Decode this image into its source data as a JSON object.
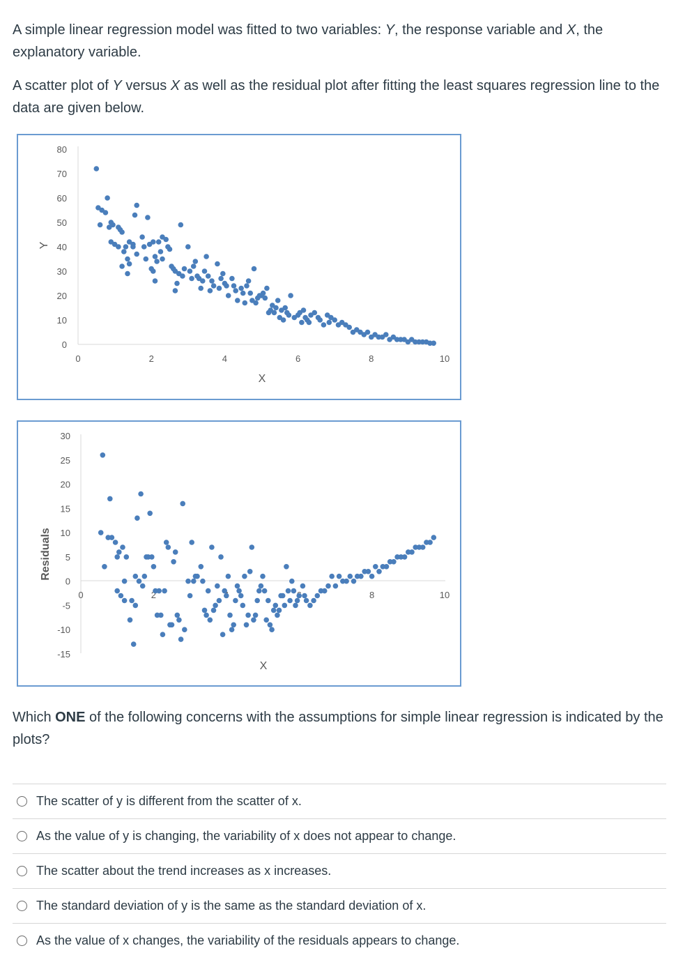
{
  "intro": {
    "p1": [
      "A simple linear regression model was fitted to two variables: ",
      "Y",
      ", the response variable and ",
      "X",
      ", the explanatory variable."
    ],
    "p2": [
      "A scatter plot of ",
      "Y",
      " versus ",
      "X",
      " as well as the residual plot after fitting the least squares regression line to the data are given below."
    ]
  },
  "chart_data": [
    {
      "type": "scatter",
      "xlabel": "X",
      "ylabel": "Y",
      "xlim": [
        0,
        10
      ],
      "ylim": [
        0,
        80
      ],
      "xticks": [
        "0",
        "2",
        "4",
        "6",
        "8",
        "10"
      ],
      "yticks": [
        "0",
        "10",
        "20",
        "30",
        "40",
        "50",
        "60",
        "70",
        "80"
      ],
      "color": "#4a7ebb",
      "points": [
        [
          0.5,
          72
        ],
        [
          0.55,
          56
        ],
        [
          0.6,
          49
        ],
        [
          0.65,
          55
        ],
        [
          0.75,
          54
        ],
        [
          0.8,
          60
        ],
        [
          0.85,
          48
        ],
        [
          0.9,
          50
        ],
        [
          0.95,
          49
        ],
        [
          1.1,
          48
        ],
        [
          1.15,
          47
        ],
        [
          1.2,
          46
        ],
        [
          0.9,
          42
        ],
        [
          1.0,
          41
        ],
        [
          1.1,
          40
        ],
        [
          1.25,
          38
        ],
        [
          1.3,
          40
        ],
        [
          1.4,
          42
        ],
        [
          1.5,
          40
        ],
        [
          1.6,
          37
        ],
        [
          1.35,
          35
        ],
        [
          1.4,
          33
        ],
        [
          1.2,
          32
        ],
        [
          1.35,
          29
        ],
        [
          1.5,
          41
        ],
        [
          1.55,
          53
        ],
        [
          1.6,
          57
        ],
        [
          1.75,
          44
        ],
        [
          1.8,
          40
        ],
        [
          1.85,
          35
        ],
        [
          1.95,
          41
        ],
        [
          1.9,
          52
        ],
        [
          2.05,
          42
        ],
        [
          2.1,
          36
        ],
        [
          2.15,
          34
        ],
        [
          2.0,
          31
        ],
        [
          2.05,
          30
        ],
        [
          2.1,
          26
        ],
        [
          2.2,
          42
        ],
        [
          2.25,
          38
        ],
        [
          2.3,
          35
        ],
        [
          2.3,
          44
        ],
        [
          2.4,
          43
        ],
        [
          2.45,
          40
        ],
        [
          2.5,
          39
        ],
        [
          2.55,
          32
        ],
        [
          2.6,
          31
        ],
        [
          2.65,
          30
        ],
        [
          2.7,
          25
        ],
        [
          2.65,
          22
        ],
        [
          2.75,
          29
        ],
        [
          2.8,
          49
        ],
        [
          2.85,
          28
        ],
        [
          2.9,
          31
        ],
        [
          3.0,
          40
        ],
        [
          3.05,
          30
        ],
        [
          3.1,
          27
        ],
        [
          3.15,
          32
        ],
        [
          3.2,
          34
        ],
        [
          3.25,
          28
        ],
        [
          3.3,
          27
        ],
        [
          3.35,
          23
        ],
        [
          3.4,
          26
        ],
        [
          3.45,
          30
        ],
        [
          3.5,
          36
        ],
        [
          3.55,
          28
        ],
        [
          3.6,
          22
        ],
        [
          3.65,
          26
        ],
        [
          3.7,
          24
        ],
        [
          3.8,
          33
        ],
        [
          3.85,
          23
        ],
        [
          3.9,
          27
        ],
        [
          3.95,
          29
        ],
        [
          4.0,
          25
        ],
        [
          4.05,
          24
        ],
        [
          4.1,
          20
        ],
        [
          4.2,
          27
        ],
        [
          4.25,
          24
        ],
        [
          4.3,
          22
        ],
        [
          4.35,
          18
        ],
        [
          4.45,
          23
        ],
        [
          4.5,
          21
        ],
        [
          4.55,
          17
        ],
        [
          4.6,
          24
        ],
        [
          4.65,
          26
        ],
        [
          4.7,
          21
        ],
        [
          4.75,
          18
        ],
        [
          4.8,
          31
        ],
        [
          4.85,
          17
        ],
        [
          4.9,
          19
        ],
        [
          4.95,
          20
        ],
        [
          5.0,
          20
        ],
        [
          5.05,
          21
        ],
        [
          5.1,
          19
        ],
        [
          5.15,
          23
        ],
        [
          5.2,
          13
        ],
        [
          5.25,
          14
        ],
        [
          5.3,
          16
        ],
        [
          5.35,
          13
        ],
        [
          5.4,
          15
        ],
        [
          5.45,
          18
        ],
        [
          5.5,
          11
        ],
        [
          5.55,
          14
        ],
        [
          5.6,
          10
        ],
        [
          5.65,
          15
        ],
        [
          5.7,
          13
        ],
        [
          5.75,
          12
        ],
        [
          5.8,
          20
        ],
        [
          5.9,
          11
        ],
        [
          6.0,
          12
        ],
        [
          6.05,
          13
        ],
        [
          6.1,
          9
        ],
        [
          6.15,
          14
        ],
        [
          6.2,
          11
        ],
        [
          6.25,
          10
        ],
        [
          6.3,
          9
        ],
        [
          6.35,
          12
        ],
        [
          6.45,
          13
        ],
        [
          6.55,
          11
        ],
        [
          6.6,
          10
        ],
        [
          6.7,
          8
        ],
        [
          6.8,
          12
        ],
        [
          6.85,
          9
        ],
        [
          6.9,
          11
        ],
        [
          7.0,
          10
        ],
        [
          7.1,
          8
        ],
        [
          7.2,
          9
        ],
        [
          7.3,
          8
        ],
        [
          7.4,
          7
        ],
        [
          7.5,
          5
        ],
        [
          7.6,
          6
        ],
        [
          7.7,
          5
        ],
        [
          7.8,
          4
        ],
        [
          7.9,
          5
        ],
        [
          8.0,
          3
        ],
        [
          8.1,
          4
        ],
        [
          8.2,
          3
        ],
        [
          8.3,
          3
        ],
        [
          8.4,
          4
        ],
        [
          8.5,
          2
        ],
        [
          8.6,
          3
        ],
        [
          8.7,
          2
        ],
        [
          8.8,
          2
        ],
        [
          8.9,
          2
        ],
        [
          9.0,
          1
        ],
        [
          9.1,
          2
        ],
        [
          9.2,
          1
        ],
        [
          9.3,
          1
        ],
        [
          9.4,
          1
        ],
        [
          9.5,
          1
        ],
        [
          9.6,
          0.5
        ],
        [
          9.7,
          0.5
        ]
      ]
    },
    {
      "type": "scatter",
      "xlabel": "X",
      "ylabel": "Residuals",
      "xlim": [
        0,
        10
      ],
      "ylim": [
        -15,
        30
      ],
      "xticks": [
        "0",
        "2",
        "4",
        "6",
        "8",
        "10"
      ],
      "yticks": [
        "-15",
        "-10",
        "-5",
        "0",
        "5",
        "10",
        "15",
        "20",
        "25",
        "30"
      ],
      "color": "#4a7ebb",
      "points": [
        [
          0.55,
          10
        ],
        [
          0.6,
          26
        ],
        [
          0.65,
          3
        ],
        [
          0.75,
          9
        ],
        [
          0.8,
          17
        ],
        [
          0.85,
          9
        ],
        [
          0.95,
          8
        ],
        [
          1.0,
          -2
        ],
        [
          1.0,
          5
        ],
        [
          1.05,
          6
        ],
        [
          1.1,
          -3
        ],
        [
          1.15,
          7
        ],
        [
          1.2,
          0
        ],
        [
          1.2,
          -4
        ],
        [
          1.25,
          5
        ],
        [
          1.35,
          -8
        ],
        [
          1.4,
          -4
        ],
        [
          1.45,
          -13
        ],
        [
          1.5,
          1
        ],
        [
          1.5,
          -5
        ],
        [
          1.55,
          13
        ],
        [
          1.6,
          0
        ],
        [
          1.65,
          18
        ],
        [
          1.7,
          -1
        ],
        [
          1.75,
          1
        ],
        [
          1.8,
          5
        ],
        [
          1.85,
          5
        ],
        [
          1.9,
          14
        ],
        [
          1.95,
          5
        ],
        [
          2.0,
          3
        ],
        [
          2.05,
          -2
        ],
        [
          2.1,
          -7
        ],
        [
          2.15,
          -2
        ],
        [
          2.2,
          -7
        ],
        [
          2.25,
          -11
        ],
        [
          2.3,
          -2
        ],
        [
          2.35,
          8
        ],
        [
          2.4,
          7
        ],
        [
          2.45,
          -9
        ],
        [
          2.5,
          -9
        ],
        [
          2.55,
          4
        ],
        [
          2.6,
          6
        ],
        [
          2.65,
          -7
        ],
        [
          2.7,
          -8
        ],
        [
          2.75,
          -12
        ],
        [
          2.8,
          16
        ],
        [
          2.85,
          -10
        ],
        [
          2.95,
          0
        ],
        [
          3.0,
          -3
        ],
        [
          3.05,
          8
        ],
        [
          3.1,
          0
        ],
        [
          3.15,
          1
        ],
        [
          3.2,
          1
        ],
        [
          3.3,
          3
        ],
        [
          3.35,
          0
        ],
        [
          3.4,
          -6
        ],
        [
          3.45,
          -7
        ],
        [
          3.5,
          -2
        ],
        [
          3.55,
          -8
        ],
        [
          3.6,
          7
        ],
        [
          3.65,
          -6
        ],
        [
          3.7,
          -5
        ],
        [
          3.75,
          -1
        ],
        [
          3.8,
          -4
        ],
        [
          3.85,
          5
        ],
        [
          3.9,
          -11
        ],
        [
          3.95,
          -2
        ],
        [
          4.0,
          -3
        ],
        [
          4.05,
          1
        ],
        [
          4.1,
          -7
        ],
        [
          4.15,
          -10
        ],
        [
          4.2,
          -9
        ],
        [
          4.25,
          -4
        ],
        [
          4.3,
          -1
        ],
        [
          4.35,
          -2
        ],
        [
          4.4,
          -3
        ],
        [
          4.45,
          -5
        ],
        [
          4.5,
          1
        ],
        [
          4.55,
          -9
        ],
        [
          4.6,
          -7
        ],
        [
          4.65,
          2
        ],
        [
          4.7,
          7
        ],
        [
          4.75,
          -8
        ],
        [
          4.8,
          -7
        ],
        [
          4.85,
          -4
        ],
        [
          4.9,
          -2
        ],
        [
          4.95,
          -1
        ],
        [
          5.0,
          1
        ],
        [
          5.05,
          -2
        ],
        [
          5.1,
          -8
        ],
        [
          5.15,
          -4
        ],
        [
          5.2,
          -9
        ],
        [
          5.25,
          -10
        ],
        [
          5.3,
          -6
        ],
        [
          5.35,
          -5
        ],
        [
          5.4,
          -7
        ],
        [
          5.45,
          -6
        ],
        [
          5.5,
          -3
        ],
        [
          5.55,
          -3
        ],
        [
          5.6,
          -5
        ],
        [
          5.65,
          3
        ],
        [
          5.7,
          -2
        ],
        [
          5.75,
          -4
        ],
        [
          5.8,
          0
        ],
        [
          5.85,
          -2
        ],
        [
          5.9,
          -5
        ],
        [
          5.95,
          -4
        ],
        [
          6.0,
          -3
        ],
        [
          6.1,
          -1
        ],
        [
          6.15,
          -3
        ],
        [
          6.2,
          -4
        ],
        [
          6.3,
          -5
        ],
        [
          6.4,
          -4
        ],
        [
          6.5,
          -3
        ],
        [
          6.6,
          -2
        ],
        [
          6.7,
          -2
        ],
        [
          6.8,
          -1
        ],
        [
          6.9,
          1
        ],
        [
          7.0,
          -1
        ],
        [
          7.1,
          1
        ],
        [
          7.2,
          0
        ],
        [
          7.3,
          0
        ],
        [
          7.4,
          1
        ],
        [
          7.5,
          0
        ],
        [
          7.6,
          1
        ],
        [
          7.7,
          1
        ],
        [
          7.8,
          2
        ],
        [
          7.9,
          2
        ],
        [
          8.0,
          1
        ],
        [
          8.1,
          3
        ],
        [
          8.2,
          2
        ],
        [
          8.3,
          3
        ],
        [
          8.4,
          3
        ],
        [
          8.5,
          4
        ],
        [
          8.6,
          4
        ],
        [
          8.7,
          5
        ],
        [
          8.8,
          5
        ],
        [
          8.9,
          5
        ],
        [
          9.0,
          6
        ],
        [
          9.1,
          6
        ],
        [
          9.2,
          7
        ],
        [
          9.3,
          7
        ],
        [
          9.4,
          7
        ],
        [
          9.5,
          8
        ],
        [
          9.6,
          8
        ],
        [
          9.7,
          9
        ]
      ]
    }
  ],
  "question": {
    "pre": "Which ",
    "bold": "ONE",
    "post": " of the following concerns with the assumptions for simple linear regression is indicated by the plots?"
  },
  "options": [
    "The scatter of y is different from the scatter of x.",
    "As the value of y is changing, the variability of x does not appear to change.",
    "The scatter about the trend increases as x increases.",
    "The standard deviation of y is the same as the standard deviation of x.",
    "As the value of x changes, the variability of the residuals appears to change."
  ]
}
